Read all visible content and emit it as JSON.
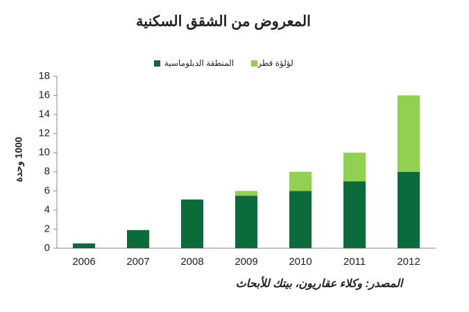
{
  "chart_data": {
    "type": "stacked_bar",
    "title": "المعروض من الشقق السكنية",
    "y_label": "1000 وحدة",
    "source": "المصدر: وكلاء عقاريون، بيتك للأبحاث",
    "categories": [
      "2006",
      "2007",
      "2008",
      "2009",
      "2010",
      "2011",
      "2012"
    ],
    "series": [
      {
        "name": "المنطقة الدبلوماسية",
        "color": "#0b6b3a",
        "values": [
          0.5,
          1.9,
          5.1,
          5.5,
          6.0,
          7.0,
          8.0
        ]
      },
      {
        "name": "لؤلؤة قطر",
        "color": "#92d050",
        "values": [
          0,
          0,
          0,
          0.5,
          2.0,
          3.0,
          8.0
        ]
      }
    ],
    "ylim": [
      0,
      18
    ],
    "yticks": [
      0,
      2,
      4,
      6,
      8,
      10,
      12,
      14,
      16,
      18
    ]
  }
}
